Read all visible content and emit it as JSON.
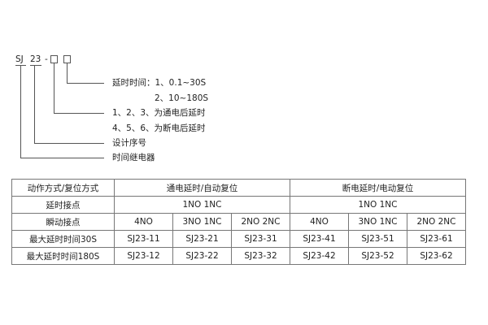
{
  "code": {
    "prefix": "SJ",
    "series": "23",
    "dash": "-"
  },
  "legend": [
    "延时时间：1、0.1~30S",
    "2、10~180S",
    "1、2、3、为通电后延时",
    "4、5、6、为断电后延时",
    "设计序号",
    "时间继电器"
  ],
  "table": {
    "header": [
      "动作方式/复位方式",
      "通电延时/自动复位",
      "断电延时/电动复位"
    ],
    "delay_contact": [
      "延时接点",
      "1NO 1NC",
      "1NO 1NC"
    ],
    "instant_contact": [
      "瞬动接点",
      "4NO",
      "3NO 1NC",
      "2NO 2NC",
      "4NO",
      "3NO 1NC",
      "2NO 2NC"
    ],
    "row30": [
      "最大延时时间30S",
      "SJ23-11",
      "SJ23-21",
      "SJ23-31",
      "SJ23-41",
      "SJ23-51",
      "SJ23-61"
    ],
    "row180": [
      "最大延时时间180S",
      "SJ23-12",
      "SJ23-22",
      "SJ23-32",
      "SJ23-42",
      "SJ23-52",
      "SJ23-62"
    ]
  }
}
